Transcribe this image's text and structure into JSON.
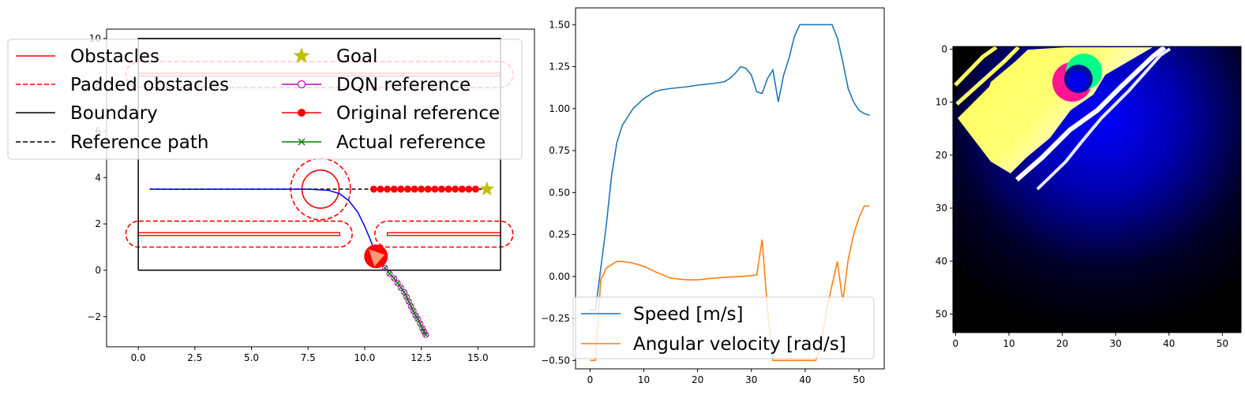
{
  "chart_data": [
    {
      "type": "line",
      "panel": "map",
      "xlim": [
        -1.4,
        17.5
      ],
      "ylim": [
        -3.3,
        10.4
      ],
      "x_ticks": [
        0.0,
        2.5,
        5.0,
        7.5,
        10.0,
        12.5,
        15.0
      ],
      "x_tick_labels": [
        "0.0",
        "2.5",
        "5.0",
        "7.5",
        "10.0",
        "12.5",
        "15.0"
      ],
      "y_ticks": [
        -2,
        0,
        2,
        4,
        6,
        8,
        10
      ],
      "y_tick_labels": [
        "−2",
        "0",
        "2",
        "4",
        "6",
        "8",
        "10"
      ],
      "legend": {
        "placement": "upper-left, two columns",
        "entries": [
          {
            "label": "Obstacles",
            "color": "#ff0000",
            "style": "solid"
          },
          {
            "label": "Padded obstacles",
            "color": "#ff0000",
            "style": "dashed"
          },
          {
            "label": "Boundary",
            "color": "#000000",
            "style": "solid"
          },
          {
            "label": "Reference path",
            "color": "#000000",
            "style": "dashed"
          },
          {
            "label": "Goal",
            "color": "#bfbf00",
            "style": "star"
          },
          {
            "label": "DQN reference",
            "color": "#bf00bf",
            "style": "line-open-circle"
          },
          {
            "label": "Original reference",
            "color": "#ff0000",
            "style": "line-filled-circle"
          },
          {
            "label": "Actual reference",
            "color": "#008000",
            "style": "line-x"
          }
        ]
      },
      "boundary": [
        [
          0,
          0
        ],
        [
          16,
          0
        ],
        [
          16,
          10
        ],
        [
          0,
          10
        ],
        [
          0,
          0
        ]
      ],
      "obstacles": {
        "rects": [
          {
            "x0": 0.0,
            "x1": 8.9,
            "y0": 1.5,
            "y1": 1.62
          },
          {
            "x0": 11.0,
            "x1": 16.0,
            "y0": 1.5,
            "y1": 1.62
          },
          {
            "x0": 0.0,
            "x1": 16.0,
            "y0": 8.38,
            "y1": 8.5
          }
        ],
        "circle": {
          "cx": 8.05,
          "cy": 3.5,
          "r": 0.82
        }
      },
      "padded_obstacles": {
        "rects": [
          {
            "x0": -0.55,
            "x1": 9.45,
            "y0": 1.0,
            "y1": 2.12
          },
          {
            "x0": 10.45,
            "x1": 16.55,
            "y0": 1.0,
            "y1": 2.12
          },
          {
            "x0": -0.55,
            "x1": 16.55,
            "y0": 7.88,
            "y1": 9.0
          }
        ],
        "circle": {
          "cx": 8.05,
          "cy": 3.5,
          "r": 1.32
        }
      },
      "reference_path": {
        "x": [
          0.5,
          15.4
        ],
        "y": [
          3.5,
          3.5
        ]
      },
      "goal": {
        "x": 15.4,
        "y": 3.5
      },
      "trajectory": {
        "color": "#0000ff",
        "x": [
          0.5,
          2.0,
          4.0,
          6.0,
          7.5,
          8.4,
          8.9,
          9.3,
          9.7,
          10.0,
          10.3,
          10.5
        ],
        "y": [
          3.5,
          3.49,
          3.5,
          3.5,
          3.5,
          3.45,
          3.3,
          3.0,
          2.5,
          1.9,
          1.2,
          0.6
        ]
      },
      "original_reference": {
        "x": [
          10.4,
          10.7,
          11.0,
          11.3,
          11.6,
          11.9,
          12.2,
          12.5,
          12.8,
          13.1,
          13.4,
          13.7,
          14.0,
          14.3,
          14.6,
          14.9
        ],
        "y": [
          3.5,
          3.5,
          3.5,
          3.5,
          3.5,
          3.5,
          3.5,
          3.5,
          3.5,
          3.5,
          3.5,
          3.5,
          3.5,
          3.5,
          3.5,
          3.5
        ]
      },
      "dqn_reference": {
        "x": [
          10.9,
          11.1,
          11.3,
          11.45,
          11.6,
          11.75,
          11.85,
          11.95,
          12.05,
          12.15,
          12.25,
          12.35,
          12.45,
          12.55,
          12.62,
          12.7
        ],
        "y": [
          0.1,
          -0.15,
          -0.35,
          -0.55,
          -0.75,
          -0.95,
          -1.15,
          -1.35,
          -1.55,
          -1.75,
          -1.95,
          -2.1,
          -2.3,
          -2.5,
          -2.65,
          -2.78
        ]
      },
      "vehicle": {
        "x": 10.5,
        "y": 0.6,
        "radius": 0.5,
        "color": "#ff0000",
        "heading_color": "#ff9a7a"
      }
    },
    {
      "type": "line",
      "panel": "controls",
      "xlim": [
        -2.7,
        54.7
      ],
      "ylim": [
        -0.55,
        1.6
      ],
      "x_ticks": [
        0,
        10,
        20,
        30,
        40,
        50
      ],
      "x_tick_labels": [
        "0",
        "10",
        "20",
        "30",
        "40",
        "50"
      ],
      "y_ticks": [
        -0.5,
        -0.25,
        0.0,
        0.25,
        0.5,
        0.75,
        1.0,
        1.25,
        1.5
      ],
      "y_tick_labels": [
        "−0.50",
        "−0.25",
        "0.00",
        "0.25",
        "0.50",
        "0.75",
        "1.00",
        "1.25",
        "1.50"
      ],
      "legend_placement": "lower-left",
      "series": [
        {
          "name": "Speed [m/s]",
          "color": "#1f77b4",
          "x": [
            0,
            1,
            2,
            3,
            4,
            5,
            6,
            7,
            8,
            9,
            10,
            11,
            12,
            13,
            15,
            18,
            20,
            23,
            25,
            26,
            27,
            28,
            29,
            30,
            31,
            32,
            33,
            34,
            35,
            36,
            37,
            38,
            39,
            40,
            41,
            42,
            43,
            44,
            45,
            46,
            47,
            48,
            49,
            50,
            51,
            52
          ],
          "y": [
            -0.2,
            -0.2,
            0.05,
            0.3,
            0.6,
            0.8,
            0.9,
            0.95,
            1.0,
            1.03,
            1.06,
            1.08,
            1.1,
            1.11,
            1.12,
            1.13,
            1.14,
            1.15,
            1.16,
            1.18,
            1.21,
            1.25,
            1.24,
            1.2,
            1.1,
            1.09,
            1.18,
            1.23,
            1.04,
            1.2,
            1.3,
            1.43,
            1.5,
            1.5,
            1.5,
            1.5,
            1.5,
            1.5,
            1.5,
            1.42,
            1.28,
            1.12,
            1.04,
            0.99,
            0.97,
            0.96
          ]
        },
        {
          "name": "Angular velocity [rad/s]",
          "color": "#ff7f0e",
          "x": [
            0,
            1,
            2,
            3,
            4,
            5,
            6,
            7,
            8,
            10,
            12,
            15,
            18,
            20,
            23,
            25,
            28,
            30,
            31,
            32,
            33,
            34,
            35,
            36,
            38,
            40,
            42,
            43,
            44,
            45,
            46,
            47,
            48,
            49,
            50,
            51,
            52
          ],
          "y": [
            -0.5,
            -0.5,
            -0.02,
            0.05,
            0.07,
            0.09,
            0.09,
            0.085,
            0.08,
            0.06,
            0.03,
            -0.01,
            -0.02,
            -0.02,
            -0.01,
            -0.005,
            0.0,
            0.005,
            0.01,
            0.22,
            -0.2,
            -0.5,
            -0.5,
            -0.5,
            -0.5,
            -0.5,
            -0.5,
            -0.4,
            -0.2,
            -0.05,
            0.09,
            -0.15,
            0.1,
            0.25,
            0.35,
            0.42,
            0.42
          ]
        }
      ]
    },
    {
      "type": "heatmap",
      "panel": "occupancy image",
      "size": [
        54,
        54
      ],
      "x_ticks": [
        0,
        10,
        20,
        30,
        40,
        50
      ],
      "x_tick_labels": [
        "0",
        "10",
        "20",
        "30",
        "40",
        "50"
      ],
      "y_ticks": [
        0,
        10,
        20,
        30,
        40,
        50
      ],
      "y_tick_labels": [
        "0",
        "10",
        "20",
        "30",
        "40",
        "50"
      ],
      "colors": {
        "background": "#000000",
        "glow": "#0000ff",
        "free_space": "#ffff66",
        "walls": "#ffffff",
        "obstacle_magenta": "#ff1493",
        "obstacle_green": "#00ff88"
      }
    }
  ]
}
